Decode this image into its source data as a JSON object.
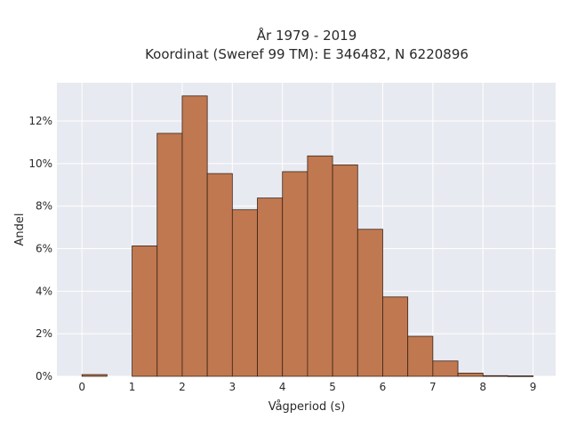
{
  "chart_data": {
    "type": "bar",
    "title_line1": "År 1979 - 2019",
    "title_line2": "Koordinat (Sweref 99 TM): E 346482, N 6220896",
    "xlabel": "Vågperiod (s)",
    "ylabel": "Andel",
    "xlim": [
      -0.5,
      9.45
    ],
    "ylim": [
      0,
      0.138
    ],
    "xticks": [
      0,
      1,
      2,
      3,
      4,
      5,
      6,
      7,
      8,
      9
    ],
    "xtick_labels": [
      "0",
      "1",
      "2",
      "3",
      "4",
      "5",
      "6",
      "7",
      "8",
      "9"
    ],
    "yticks": [
      0,
      0.02,
      0.04,
      0.06,
      0.08,
      0.1,
      0.12
    ],
    "ytick_labels": [
      "0%",
      "2%",
      "4%",
      "6%",
      "8%",
      "10%",
      "12%"
    ],
    "grid": true,
    "bin_width": 0.5,
    "bins": [
      {
        "start": 0.0,
        "value": 0.0008
      },
      {
        "start": 0.5,
        "value": 0.0
      },
      {
        "start": 1.0,
        "value": 0.0613
      },
      {
        "start": 1.5,
        "value": 0.1142
      },
      {
        "start": 2.0,
        "value": 0.1318
      },
      {
        "start": 2.5,
        "value": 0.0953
      },
      {
        "start": 3.0,
        "value": 0.0783
      },
      {
        "start": 3.5,
        "value": 0.0838
      },
      {
        "start": 4.0,
        "value": 0.0962
      },
      {
        "start": 4.5,
        "value": 0.1036
      },
      {
        "start": 5.0,
        "value": 0.0994
      },
      {
        "start": 5.5,
        "value": 0.0691
      },
      {
        "start": 6.0,
        "value": 0.0373
      },
      {
        "start": 6.5,
        "value": 0.0188
      },
      {
        "start": 7.0,
        "value": 0.0072
      },
      {
        "start": 7.5,
        "value": 0.0015
      },
      {
        "start": 8.0,
        "value": 0.0003
      },
      {
        "start": 8.5,
        "value": 0.0002
      }
    ],
    "bar_color": "#c07850",
    "bar_edge_color": "#3a2418",
    "plot_background": "#e8eaf1",
    "grid_color": "#ffffff"
  }
}
